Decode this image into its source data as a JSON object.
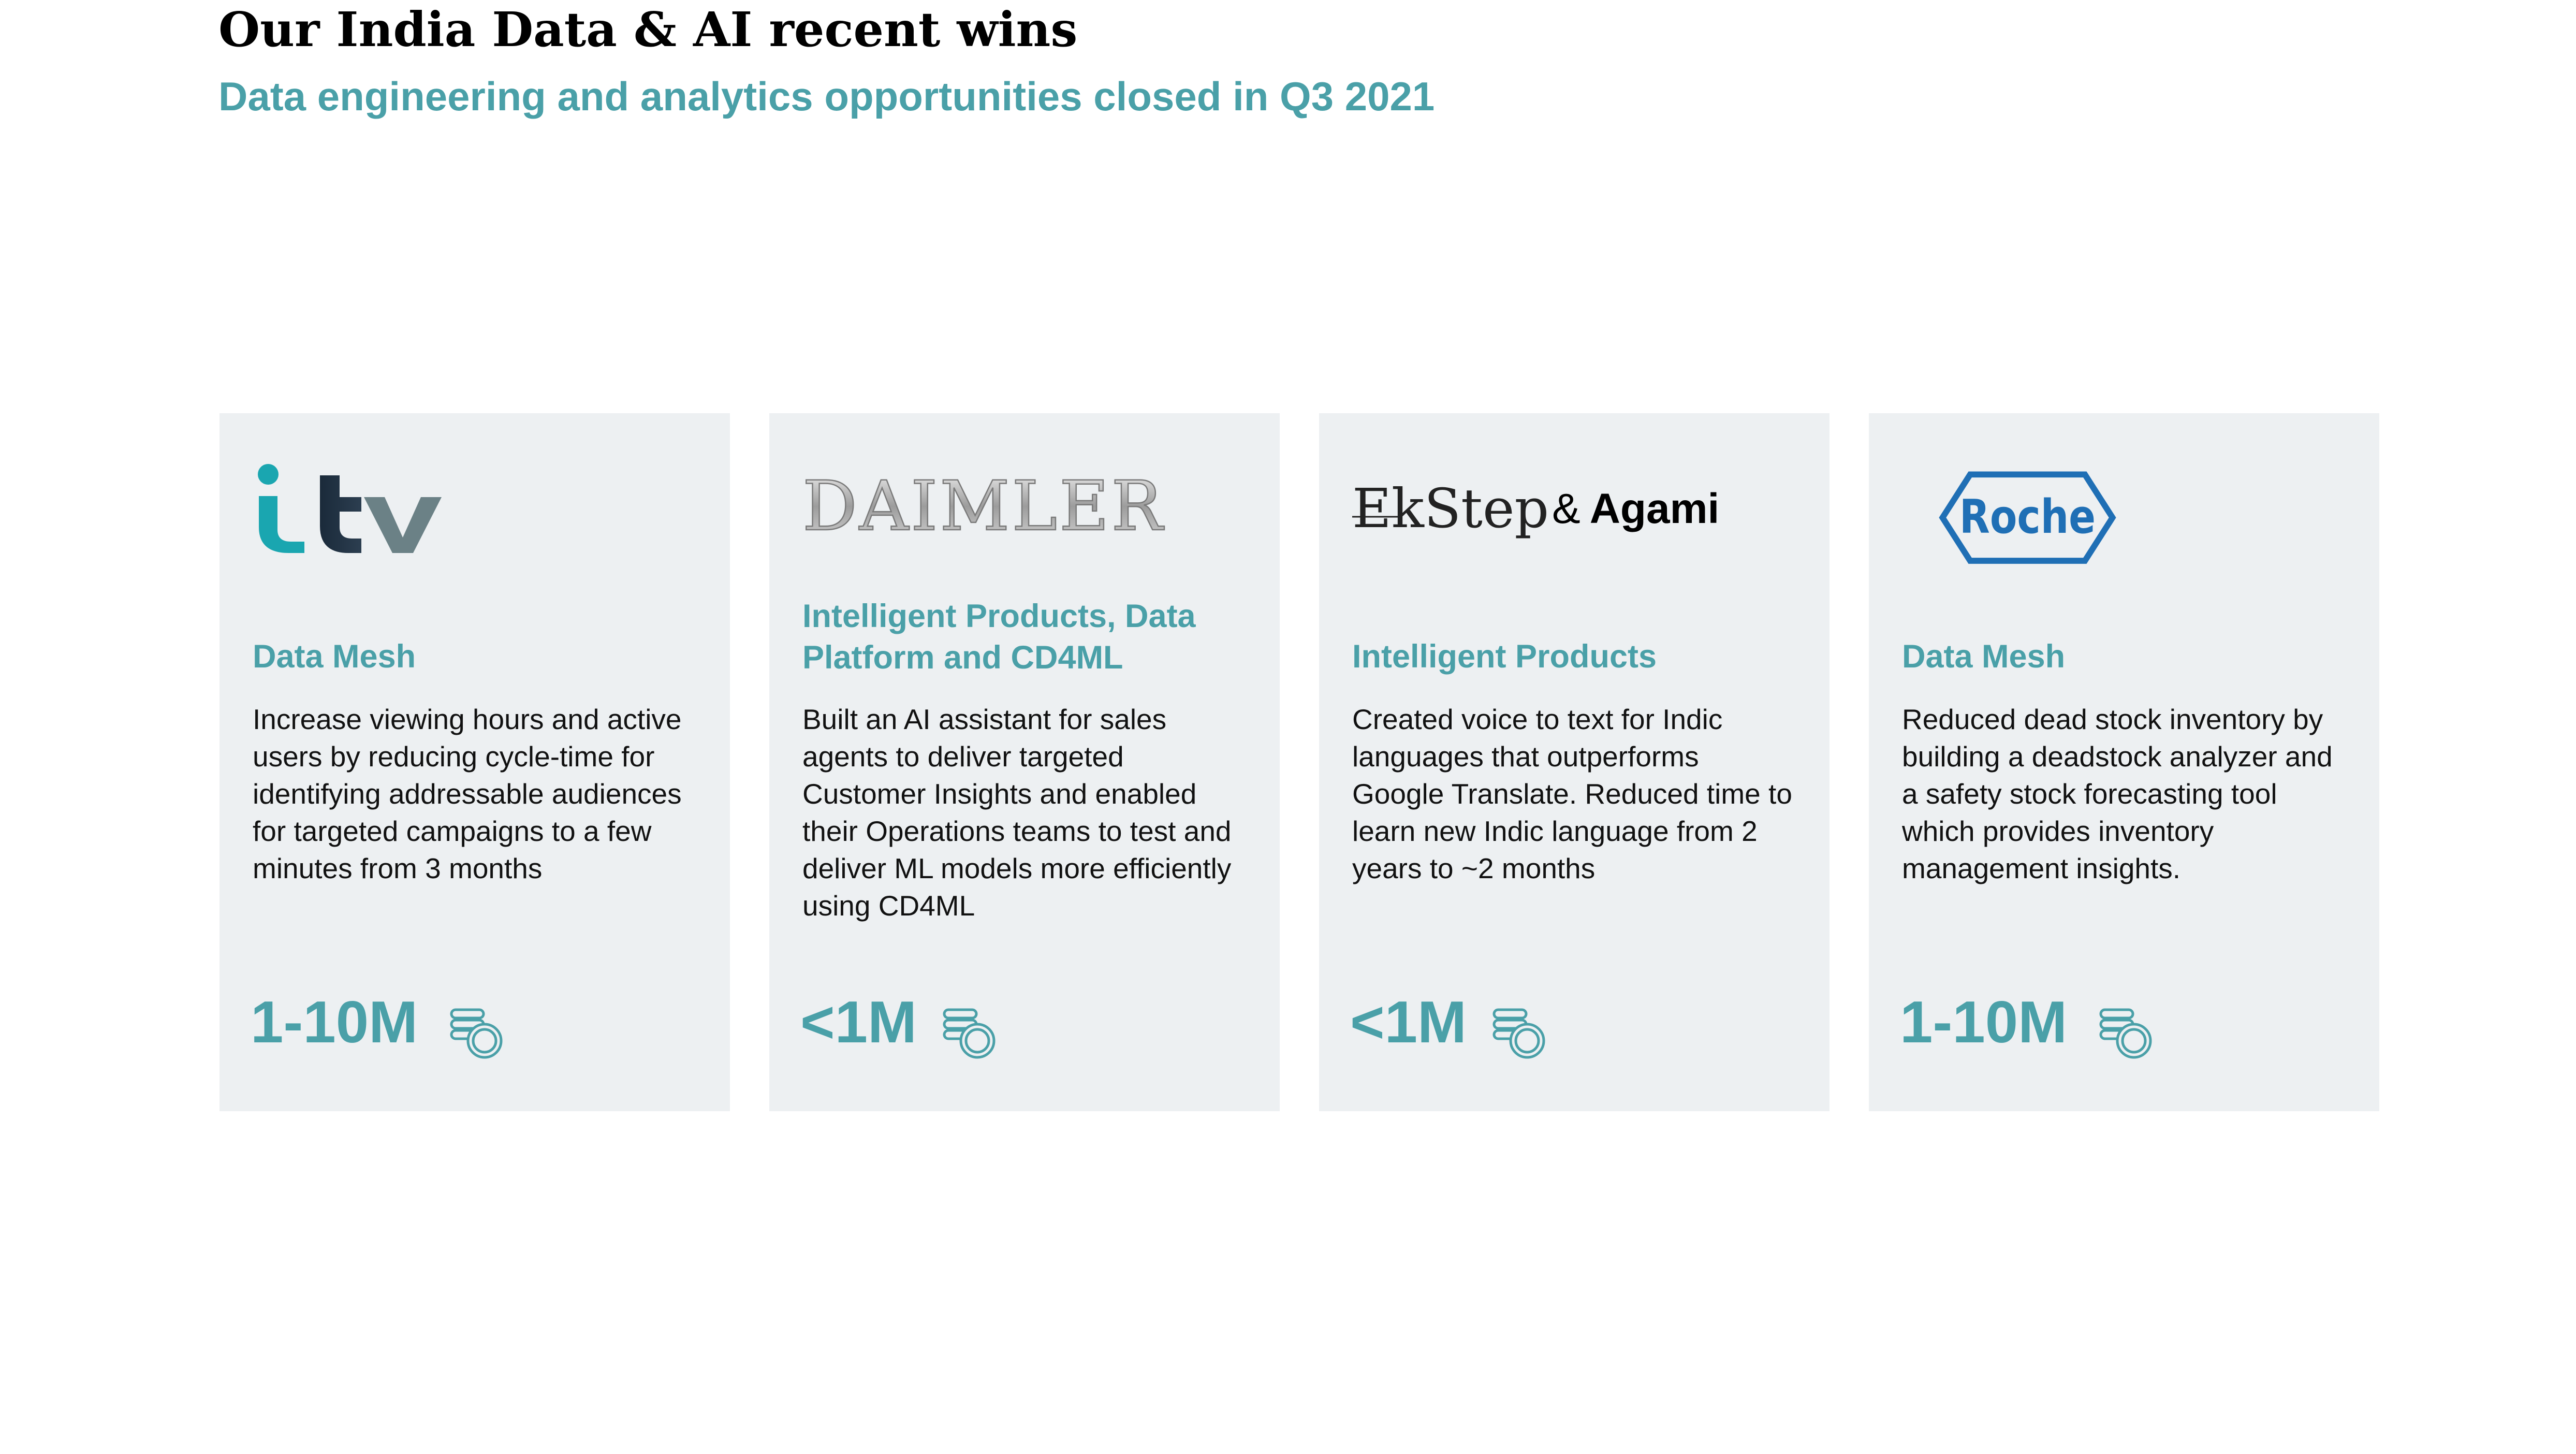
{
  "header": {
    "title": "Our India Data & AI recent wins",
    "subtitle": "Data engineering and analytics opportunities closed in Q3 2021"
  },
  "colors": {
    "accent": "#4aa0a8",
    "card_bg": "#edf0f2",
    "roche_blue": "#1f6fb5"
  },
  "cards": [
    {
      "logo": "itv-logo",
      "logo_text": "itv",
      "heading": "Data Mesh",
      "description": "Increase viewing hours and active users by reducing cycle-time for identifying addressable audiences for targeted campaigns to a few minutes from 3 months",
      "value": "1-10M",
      "icon": "coins-icon"
    },
    {
      "logo": "daimler-logo",
      "logo_text": "DAIMLER",
      "heading": "Intelligent Products, Data Platform and CD4ML",
      "description": "Built an AI assistant for sales agents to deliver targeted Customer Insights and enabled their Operations teams to test and deliver ML models more efficiently using CD4ML",
      "value": "<1M",
      "icon": "coins-icon"
    },
    {
      "logo": "ekstep-logo",
      "logo_text": "EkStep",
      "logo_amp": "&",
      "logo_partner": "Agami",
      "heading": "Intelligent Products",
      "description": "Created voice to text for Indic languages that outperforms Google Translate. Reduced time to learn new Indic language from 2 years to ~2 months",
      "value": "<1M",
      "icon": "coins-icon"
    },
    {
      "logo": "roche-logo",
      "logo_text": "Roche",
      "heading": "Data Mesh",
      "description": "Reduced dead stock inventory by building a deadstock analyzer and a safety stock forecasting tool which provides inventory management insights.",
      "value": "1-10M",
      "icon": "coins-icon"
    }
  ]
}
